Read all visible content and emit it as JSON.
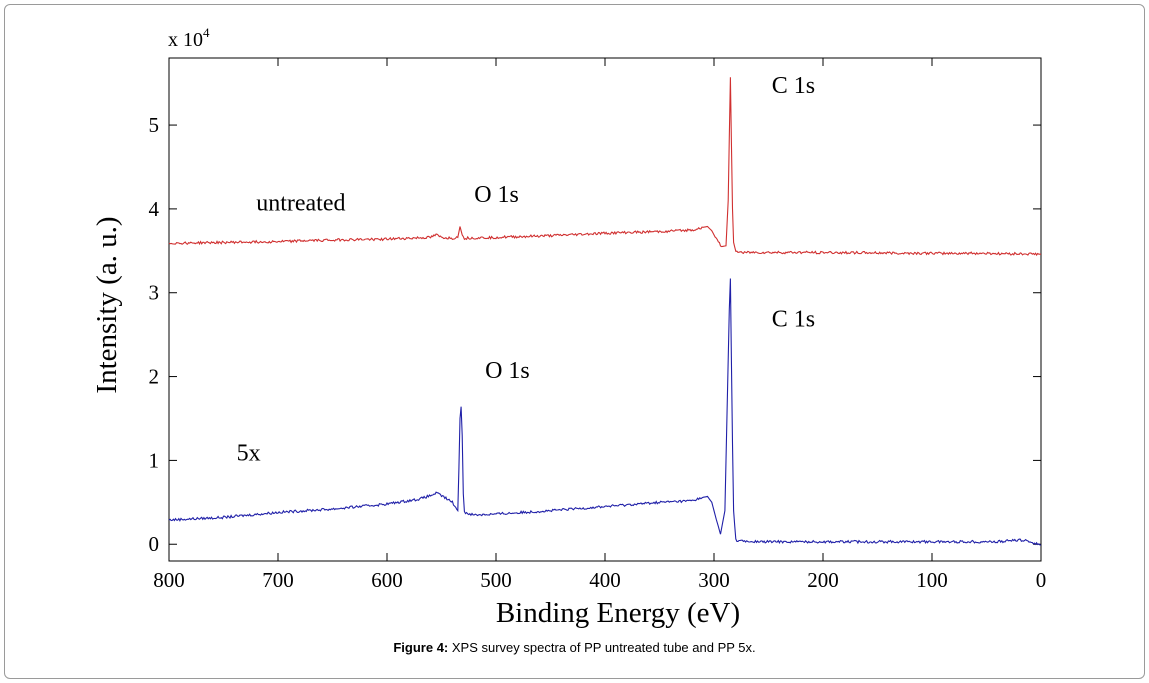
{
  "chart_data": {
    "type": "line",
    "x_reversed": true,
    "xlim": [
      800,
      0
    ],
    "ylim": [
      -0.2,
      5.8
    ],
    "y_multiplier_label": "x 10",
    "y_multiplier_exp": "4",
    "xlabel": "Binding Energy (eV)",
    "ylabel": "Intensity (a. u.)",
    "x_ticks": [
      800,
      700,
      600,
      500,
      400,
      300,
      200,
      100,
      0
    ],
    "y_ticks": [
      0,
      1,
      2,
      3,
      4,
      5
    ],
    "grid": false,
    "series": [
      {
        "name": "untreated",
        "color": "#d03030",
        "points": [
          [
            800,
            3.59
          ],
          [
            750,
            3.6
          ],
          [
            700,
            3.61
          ],
          [
            650,
            3.63
          ],
          [
            600,
            3.64
          ],
          [
            560,
            3.66
          ],
          [
            555,
            3.69
          ],
          [
            550,
            3.66
          ],
          [
            540,
            3.65
          ],
          [
            535,
            3.66
          ],
          [
            533,
            3.79
          ],
          [
            531,
            3.69
          ],
          [
            529,
            3.65
          ],
          [
            500,
            3.66
          ],
          [
            450,
            3.68
          ],
          [
            400,
            3.71
          ],
          [
            350,
            3.73
          ],
          [
            320,
            3.75
          ],
          [
            310,
            3.78
          ],
          [
            306,
            3.79
          ],
          [
            302,
            3.74
          ],
          [
            298,
            3.64
          ],
          [
            293,
            3.55
          ],
          [
            289,
            3.56
          ],
          [
            287,
            4.1
          ],
          [
            286,
            4.85
          ],
          [
            285,
            5.57
          ],
          [
            284,
            4.8
          ],
          [
            283,
            4.0
          ],
          [
            282,
            3.6
          ],
          [
            280,
            3.49
          ],
          [
            270,
            3.48
          ],
          [
            200,
            3.48
          ],
          [
            100,
            3.47
          ],
          [
            50,
            3.47
          ],
          [
            0,
            3.46
          ]
        ]
      },
      {
        "name": "5x",
        "color": "#2020a8",
        "points": [
          [
            800,
            0.29
          ],
          [
            750,
            0.32
          ],
          [
            700,
            0.38
          ],
          [
            650,
            0.42
          ],
          [
            600,
            0.48
          ],
          [
            570,
            0.54
          ],
          [
            560,
            0.58
          ],
          [
            555,
            0.61
          ],
          [
            550,
            0.58
          ],
          [
            540,
            0.5
          ],
          [
            535,
            0.4
          ],
          [
            534,
            0.9
          ],
          [
            533,
            1.5
          ],
          [
            532,
            1.64
          ],
          [
            531,
            1.3
          ],
          [
            530,
            0.6
          ],
          [
            529,
            0.38
          ],
          [
            520,
            0.35
          ],
          [
            500,
            0.36
          ],
          [
            450,
            0.4
          ],
          [
            400,
            0.45
          ],
          [
            350,
            0.5
          ],
          [
            320,
            0.52
          ],
          [
            310,
            0.56
          ],
          [
            306,
            0.57
          ],
          [
            302,
            0.5
          ],
          [
            298,
            0.3
          ],
          [
            294,
            0.12
          ],
          [
            290,
            0.4
          ],
          [
            288,
            1.6
          ],
          [
            286,
            2.8
          ],
          [
            285,
            3.17
          ],
          [
            284,
            2.2
          ],
          [
            283,
            1.2
          ],
          [
            282,
            0.4
          ],
          [
            280,
            0.05
          ],
          [
            270,
            0.03
          ],
          [
            200,
            0.03
          ],
          [
            100,
            0.03
          ],
          [
            40,
            0.03
          ],
          [
            20,
            0.05
          ],
          [
            12,
            0.04
          ],
          [
            5,
            0.01
          ],
          [
            0,
            -0.01
          ]
        ]
      }
    ],
    "annotations": [
      {
        "text": "C 1s",
        "x": 247,
        "y": 5.38
      },
      {
        "text": "untreated",
        "x": 720,
        "y": 3.98
      },
      {
        "text": "O 1s",
        "x": 520,
        "y": 4.08
      },
      {
        "text": "C 1s",
        "x": 247,
        "y": 2.6
      },
      {
        "text": "O 1s",
        "x": 510,
        "y": 1.98
      },
      {
        "text": "5x",
        "x": 738,
        "y": 1.0
      }
    ]
  },
  "caption": {
    "label": "Figure 4:",
    "text": " XPS survey spectra of PP untreated tube and PP 5x."
  }
}
